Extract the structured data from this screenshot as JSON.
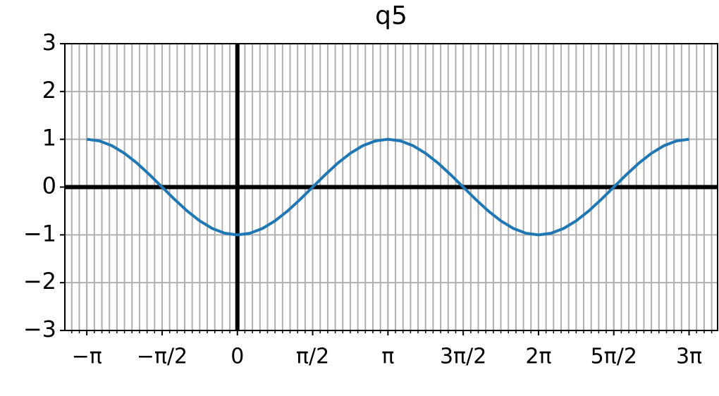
{
  "chart_data": {
    "type": "line",
    "title": "q5",
    "x": [
      -3.1416,
      -2.8798,
      -2.618,
      -2.3562,
      -2.0944,
      -1.8326,
      -1.5708,
      -1.309,
      -1.0472,
      -0.7854,
      -0.5236,
      -0.2618,
      0,
      0.2618,
      0.5236,
      0.7854,
      1.0472,
      1.309,
      1.5708,
      1.8326,
      2.0944,
      2.3562,
      2.618,
      2.8798,
      3.1416,
      3.4034,
      3.6652,
      3.927,
      4.1888,
      4.4506,
      4.7124,
      4.9742,
      5.236,
      5.4978,
      5.7596,
      6.0214,
      6.2832,
      6.545,
      6.8068,
      7.0686,
      7.3304,
      7.5922,
      7.854,
      8.1158,
      8.3776,
      8.6394,
      8.9012,
      9.163,
      9.4248
    ],
    "values": [
      1,
      0.966,
      0.866,
      0.707,
      0.5,
      0.259,
      0,
      -0.259,
      -0.5,
      -0.707,
      -0.866,
      -0.966,
      -1,
      -0.966,
      -0.866,
      -0.707,
      -0.5,
      -0.259,
      0,
      0.259,
      0.5,
      0.707,
      0.866,
      0.966,
      1,
      0.966,
      0.866,
      0.707,
      0.5,
      0.259,
      0,
      -0.259,
      -0.5,
      -0.707,
      -0.866,
      -0.966,
      -1,
      -0.966,
      -0.866,
      -0.707,
      -0.5,
      -0.259,
      0,
      0.259,
      0.5,
      0.707,
      0.866,
      0.966,
      1
    ],
    "color": "#1f77b4",
    "xlim": [
      -3.6,
      10.02
    ],
    "ylim": [
      -3,
      3
    ],
    "xticks": [
      {
        "value": -3.1416,
        "label": "−π"
      },
      {
        "value": -1.5708,
        "label": "−π/2"
      },
      {
        "value": 0,
        "label": "0"
      },
      {
        "value": 1.5708,
        "label": "π/2"
      },
      {
        "value": 3.1416,
        "label": "π"
      },
      {
        "value": 4.7124,
        "label": "3π/2"
      },
      {
        "value": 6.2832,
        "label": "2π"
      },
      {
        "value": 7.854,
        "label": "5π/2"
      },
      {
        "value": 9.4248,
        "label": "3π"
      }
    ],
    "yticks": [
      {
        "value": -3,
        "label": "−3"
      },
      {
        "value": -2,
        "label": "−2"
      },
      {
        "value": -1,
        "label": "−1"
      },
      0,
      1,
      2,
      3
    ],
    "grid": true,
    "xminor_per_major": 10,
    "zero_lines": true
  }
}
